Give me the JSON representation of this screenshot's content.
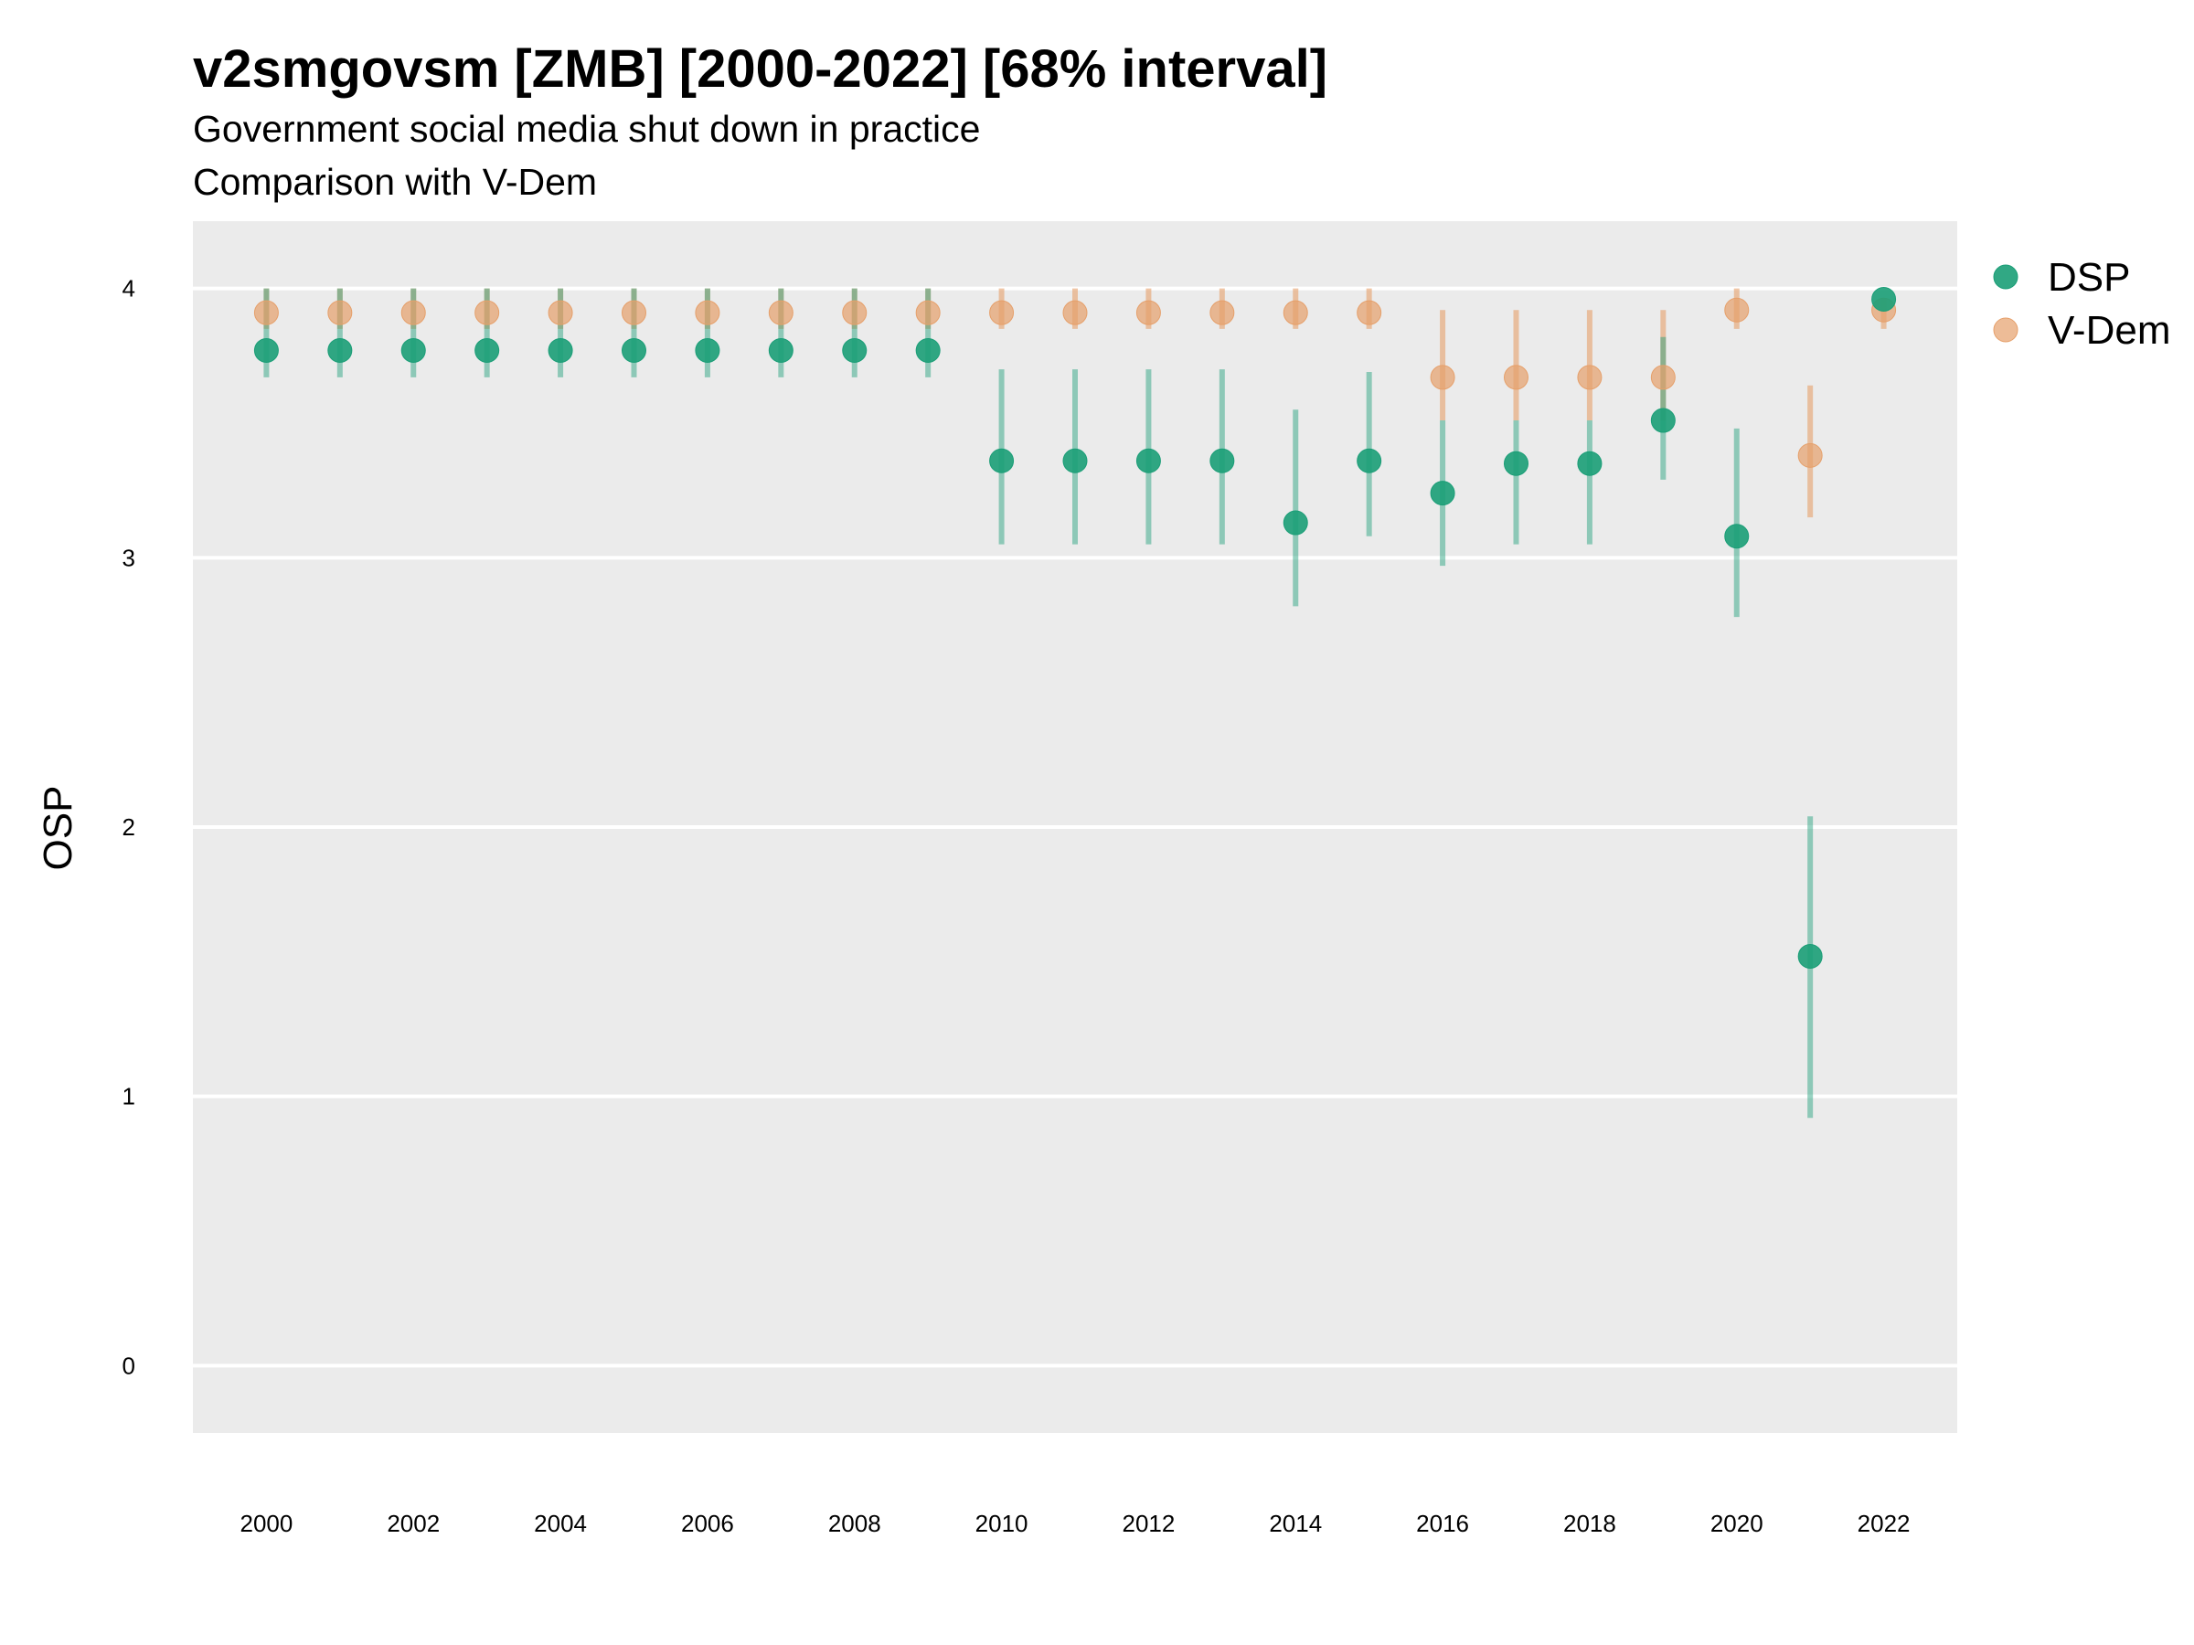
{
  "chart_data": {
    "type": "scatter",
    "title": "v2smgovsm [ZMB] [2000-2022] [68% interval]",
    "subtitle_lines": [
      "Government social media shut down in practice",
      "Comparison with V-Dem"
    ],
    "xlabel": "",
    "ylabel": "OSP",
    "xlim": [
      1999,
      2023
    ],
    "ylim": [
      -0.25,
      4.25
    ],
    "x_ticks": [
      2000,
      2002,
      2004,
      2006,
      2008,
      2010,
      2012,
      2014,
      2016,
      2018,
      2020,
      2022
    ],
    "y_ticks": [
      0,
      1,
      2,
      3,
      4
    ],
    "grid": true,
    "legend_position": "right",
    "x": [
      2000,
      2001,
      2002,
      2003,
      2004,
      2005,
      2006,
      2007,
      2008,
      2009,
      2010,
      2011,
      2012,
      2013,
      2014,
      2015,
      2016,
      2017,
      2018,
      2019,
      2020,
      2021,
      2022
    ],
    "series": [
      {
        "name": "DSP",
        "color": "#1b9e77",
        "values": [
          3.77,
          3.77,
          3.77,
          3.77,
          3.77,
          3.77,
          3.77,
          3.77,
          3.77,
          3.77,
          3.36,
          3.36,
          3.36,
          3.36,
          3.13,
          3.36,
          3.24,
          3.35,
          3.35,
          3.51,
          3.08,
          1.52,
          3.96
        ],
        "lower": [
          3.67,
          3.67,
          3.67,
          3.67,
          3.67,
          3.67,
          3.67,
          3.67,
          3.67,
          3.67,
          3.05,
          3.05,
          3.05,
          3.05,
          2.82,
          3.08,
          2.97,
          3.05,
          3.05,
          3.29,
          2.78,
          0.92,
          3.96
        ],
        "upper": [
          4.0,
          4.0,
          4.0,
          4.0,
          4.0,
          4.0,
          4.0,
          4.0,
          4.0,
          4.0,
          3.7,
          3.7,
          3.7,
          3.7,
          3.55,
          3.69,
          3.51,
          3.51,
          3.51,
          3.82,
          3.48,
          2.04,
          3.96
        ]
      },
      {
        "name": "V-Dem",
        "color": "#e6a06b",
        "values": [
          3.91,
          3.91,
          3.91,
          3.91,
          3.91,
          3.91,
          3.91,
          3.91,
          3.91,
          3.91,
          3.91,
          3.91,
          3.91,
          3.91,
          3.91,
          3.91,
          3.67,
          3.67,
          3.67,
          3.67,
          3.92,
          3.38,
          3.92
        ],
        "lower": [
          3.85,
          3.85,
          3.85,
          3.85,
          3.85,
          3.85,
          3.85,
          3.85,
          3.85,
          3.85,
          3.85,
          3.85,
          3.85,
          3.85,
          3.85,
          3.85,
          3.51,
          3.51,
          3.51,
          3.51,
          3.85,
          3.15,
          3.85
        ],
        "upper": [
          4.0,
          4.0,
          4.0,
          4.0,
          4.0,
          4.0,
          4.0,
          4.0,
          4.0,
          4.0,
          4.0,
          4.0,
          4.0,
          4.0,
          4.0,
          4.0,
          3.92,
          3.92,
          3.92,
          3.92,
          4.0,
          3.64,
          3.96
        ]
      }
    ]
  }
}
